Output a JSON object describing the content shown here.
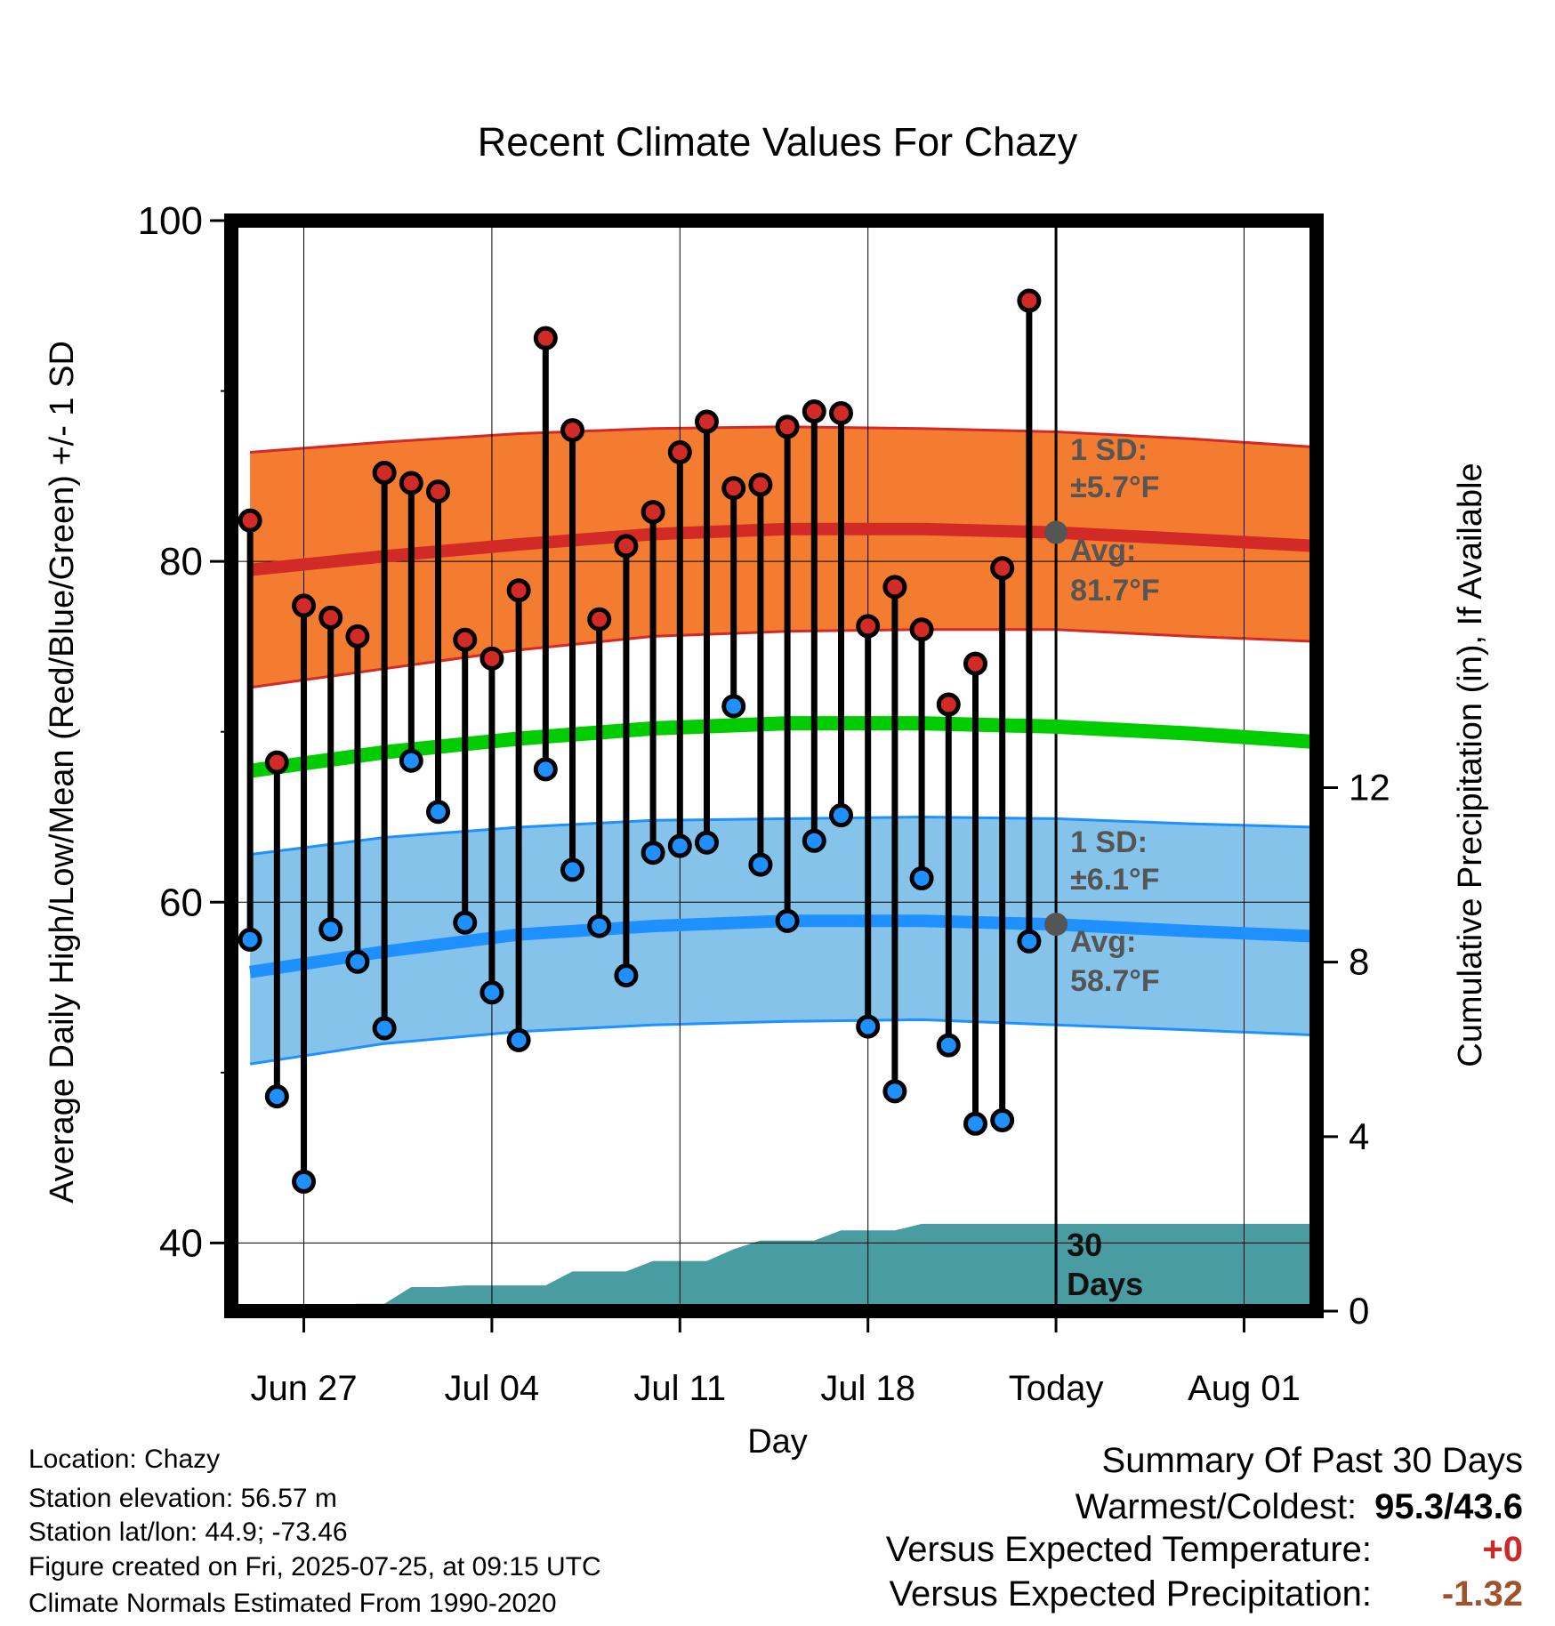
{
  "chart_data": {
    "type": "line",
    "title": "Recent Climate Values For Chazy",
    "xlabel": "Day",
    "ylabel": "Average Daily High/Low/Mean (Red/Blue/Green) +/- 1 SD",
    "y2label": "Cumulative Precipitation (in), If Available",
    "ylim": [
      36,
      100
    ],
    "y_ticks": [
      "100",
      "80",
      "60",
      "40"
    ],
    "y2lim": [
      0,
      25
    ],
    "y2_ticks": [
      "12",
      "8",
      "4",
      "0"
    ],
    "x_ticks": [
      "Jun 27",
      "Jul 04",
      "Jul 11",
      "Jul 18",
      "Today",
      "Aug 01"
    ],
    "x_tick_day": [
      2,
      9,
      16,
      23,
      30,
      37
    ],
    "x_range": [
      -0.7,
      39.7
    ],
    "today_day": 30,
    "days_label": "30 Days",
    "observed_highs": [
      82.4,
      68.2,
      77.4,
      76.7,
      75.6,
      85.2,
      84.6,
      84.1,
      75.4,
      74.3,
      78.3,
      93.1,
      87.7,
      76.6,
      80.9,
      82.9,
      86.4,
      88.2,
      84.3,
      84.5,
      87.9,
      88.8,
      88.7,
      76.2,
      78.5,
      76.0,
      71.6,
      74.0,
      79.6,
      95.3
    ],
    "observed_lows": [
      57.8,
      48.6,
      43.6,
      58.4,
      56.5,
      52.6,
      68.3,
      65.3,
      58.8,
      54.7,
      51.9,
      67.8,
      61.9,
      58.6,
      55.7,
      62.9,
      63.3,
      63.5,
      71.5,
      62.2,
      58.9,
      63.6,
      65.1,
      52.7,
      48.9,
      61.4,
      51.6,
      47.0,
      47.2,
      57.7
    ],
    "normal_high": {
      "day": [
        0,
        5,
        10,
        15,
        20,
        25,
        30,
        35,
        39.7
      ],
      "avg": [
        79.5,
        80.3,
        81.0,
        81.6,
        81.9,
        81.9,
        81.7,
        81.3,
        80.9
      ],
      "upper": [
        86.4,
        87.0,
        87.5,
        87.8,
        87.9,
        87.8,
        87.6,
        87.2,
        86.7
      ],
      "lower": [
        72.6,
        73.7,
        74.8,
        75.6,
        75.9,
        76.0,
        76.0,
        75.6,
        75.3
      ]
    },
    "normal_mean": {
      "day": [
        0,
        5,
        10,
        15,
        20,
        25,
        30,
        35,
        39.7
      ],
      "avg": [
        67.7,
        68.8,
        69.6,
        70.2,
        70.5,
        70.5,
        70.3,
        69.9,
        69.4
      ]
    },
    "normal_low": {
      "day": [
        0,
        5,
        10,
        15,
        20,
        25,
        30,
        35,
        39.7
      ],
      "avg": [
        55.9,
        57.1,
        58.1,
        58.6,
        58.9,
        58.9,
        58.7,
        58.3,
        58.0
      ],
      "upper": [
        62.8,
        63.8,
        64.4,
        64.8,
        64.9,
        65.0,
        64.9,
        64.6,
        64.4
      ],
      "lower": [
        50.5,
        51.7,
        52.4,
        52.8,
        53.0,
        53.1,
        52.8,
        52.5,
        52.2
      ]
    },
    "high_sd_text": "1 SD:",
    "high_sd_value": "±5.7°F",
    "high_avg_text": "Avg:",
    "high_avg_value": "81.7°F",
    "low_sd_text": "1 SD:",
    "low_sd_value": "±6.1°F",
    "low_avg_text": "Avg:",
    "low_avg_value": "58.7°F",
    "precip_cumulative": [
      0,
      0,
      0,
      0.12,
      0.17,
      0.17,
      0.55,
      0.55,
      0.59,
      0.59,
      0.59,
      0.59,
      0.91,
      0.91,
      0.91,
      1.15,
      1.15,
      1.15,
      1.42,
      1.62,
      1.62,
      1.62,
      1.85,
      1.85,
      1.85,
      2.0,
      2.0,
      2.0,
      2.0,
      2.0,
      2.0
    ],
    "colors": {
      "high_band": "#f47c30",
      "high_line": "#d22a26",
      "mean_line": "#00cc00",
      "low_band": "#85c3ea",
      "low_line": "#1e90ff",
      "high_point": "#d22a26",
      "low_point": "#1e90ff",
      "precip_fill": "#4a9ca3",
      "today_marker": "#555555"
    }
  },
  "footer": {
    "location": "Location: Chazy",
    "elevation": "Station elevation: 56.57 m",
    "latlon": "Station lat/lon: 44.9; -73.46",
    "created": "Figure created on Fri, 2025-07-25, at 09:15 UTC",
    "normals": "Climate Normals Estimated From 1990-2020"
  },
  "summary": {
    "title": "Summary Of Past 30 Days",
    "warm_cold_label": "Warmest/Coldest:",
    "warm_cold_value": "95.3/43.6",
    "temp_label": "Versus Expected Temperature:",
    "temp_value": "+0",
    "temp_color": "#cc2a2a",
    "precip_label": "Versus Expected Precipitation:",
    "precip_value": "-1.32",
    "precip_color": "#a0522d"
  }
}
